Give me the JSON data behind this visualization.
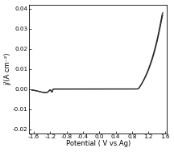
{
  "title": "",
  "xlabel": "Potential ( V vs.Ag)",
  "ylabel": "j/(A cm⁻²)",
  "xlim": [
    -1.72,
    1.65
  ],
  "ylim": [
    -0.022,
    0.042
  ],
  "xticks": [
    -1.6,
    -1.2,
    -0.8,
    -0.4,
    0.0,
    0.4,
    0.8,
    1.2,
    1.6
  ],
  "yticks": [
    -0.02,
    -0.01,
    0.0,
    0.01,
    0.02,
    0.03,
    0.04
  ],
  "line_color": "#2a2a2a",
  "line_width": 0.9,
  "figsize": [
    2.16,
    1.89
  ],
  "dpi": 100,
  "xlabel_fontsize": 6.0,
  "ylabel_fontsize": 6.0,
  "tick_fontsize": 5.2
}
